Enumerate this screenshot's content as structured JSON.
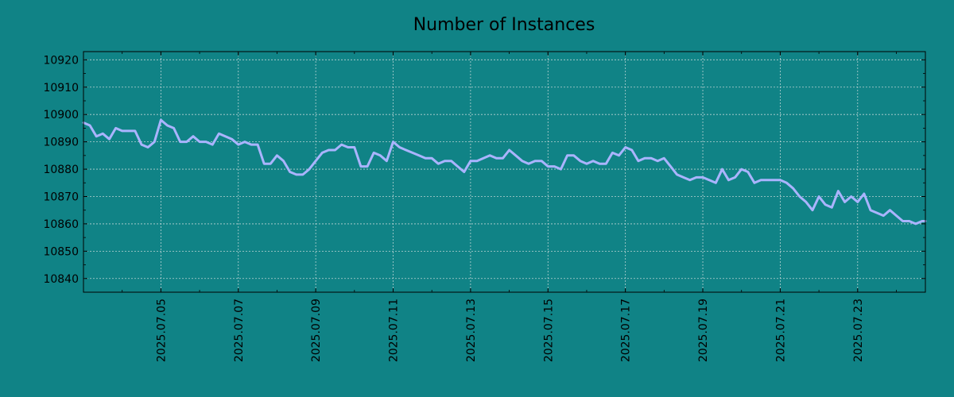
{
  "chart_data": {
    "type": "line",
    "title": "Number of Instances",
    "xlabel": "",
    "ylabel": "",
    "x_format": "YYYY.MM.DD",
    "xlim": [
      "2025-07-03 00:00",
      "2025-07-24 18:00"
    ],
    "ylim": [
      10835,
      10923
    ],
    "y_ticks": [
      10840,
      10850,
      10860,
      10870,
      10880,
      10890,
      10900,
      10910,
      10920
    ],
    "x_ticks": [
      "2025.07.05",
      "2025.07.07",
      "2025.07.09",
      "2025.07.11",
      "2025.07.13",
      "2025.07.15",
      "2025.07.17",
      "2025.07.19",
      "2025.07.21",
      "2025.07.23"
    ],
    "grid": true,
    "series": [
      {
        "name": "",
        "color": "#aab4ff",
        "x": [
          "2025-07-03 00:00",
          "2025-07-03 04:00",
          "2025-07-03 08:00",
          "2025-07-03 12:00",
          "2025-07-03 16:00",
          "2025-07-03 20:00",
          "2025-07-04 00:00",
          "2025-07-04 04:00",
          "2025-07-04 08:00",
          "2025-07-04 12:00",
          "2025-07-04 16:00",
          "2025-07-04 20:00",
          "2025-07-05 00:00",
          "2025-07-05 04:00",
          "2025-07-05 08:00",
          "2025-07-05 12:00",
          "2025-07-05 16:00",
          "2025-07-05 20:00",
          "2025-07-06 00:00",
          "2025-07-06 04:00",
          "2025-07-06 08:00",
          "2025-07-06 12:00",
          "2025-07-06 16:00",
          "2025-07-06 20:00",
          "2025-07-07 00:00",
          "2025-07-07 04:00",
          "2025-07-07 08:00",
          "2025-07-07 12:00",
          "2025-07-07 16:00",
          "2025-07-07 20:00",
          "2025-07-08 00:00",
          "2025-07-08 04:00",
          "2025-07-08 08:00",
          "2025-07-08 12:00",
          "2025-07-08 16:00",
          "2025-07-08 20:00",
          "2025-07-09 00:00",
          "2025-07-09 04:00",
          "2025-07-09 08:00",
          "2025-07-09 12:00",
          "2025-07-09 16:00",
          "2025-07-09 20:00",
          "2025-07-10 00:00",
          "2025-07-10 04:00",
          "2025-07-10 08:00",
          "2025-07-10 12:00",
          "2025-07-10 16:00",
          "2025-07-10 20:00",
          "2025-07-11 00:00",
          "2025-07-11 04:00",
          "2025-07-11 08:00",
          "2025-07-11 12:00",
          "2025-07-11 16:00",
          "2025-07-11 20:00",
          "2025-07-12 00:00",
          "2025-07-12 04:00",
          "2025-07-12 08:00",
          "2025-07-12 12:00",
          "2025-07-12 16:00",
          "2025-07-12 20:00",
          "2025-07-13 00:00",
          "2025-07-13 04:00",
          "2025-07-13 08:00",
          "2025-07-13 12:00",
          "2025-07-13 16:00",
          "2025-07-13 20:00",
          "2025-07-14 00:00",
          "2025-07-14 04:00",
          "2025-07-14 08:00",
          "2025-07-14 12:00",
          "2025-07-14 16:00",
          "2025-07-14 20:00",
          "2025-07-15 00:00",
          "2025-07-15 04:00",
          "2025-07-15 08:00",
          "2025-07-15 12:00",
          "2025-07-15 16:00",
          "2025-07-15 20:00",
          "2025-07-16 00:00",
          "2025-07-16 04:00",
          "2025-07-16 08:00",
          "2025-07-16 12:00",
          "2025-07-16 16:00",
          "2025-07-16 20:00",
          "2025-07-17 00:00",
          "2025-07-17 04:00",
          "2025-07-17 08:00",
          "2025-07-17 12:00",
          "2025-07-17 16:00",
          "2025-07-17 20:00",
          "2025-07-18 00:00",
          "2025-07-18 04:00",
          "2025-07-18 08:00",
          "2025-07-18 12:00",
          "2025-07-18 16:00",
          "2025-07-18 20:00",
          "2025-07-19 00:00",
          "2025-07-19 04:00",
          "2025-07-19 08:00",
          "2025-07-19 12:00",
          "2025-07-19 16:00",
          "2025-07-19 20:00",
          "2025-07-20 00:00",
          "2025-07-20 04:00",
          "2025-07-20 08:00",
          "2025-07-20 12:00",
          "2025-07-20 16:00",
          "2025-07-20 20:00",
          "2025-07-21 00:00",
          "2025-07-21 04:00",
          "2025-07-21 08:00",
          "2025-07-21 12:00",
          "2025-07-21 16:00",
          "2025-07-21 20:00",
          "2025-07-22 00:00",
          "2025-07-22 04:00",
          "2025-07-22 08:00",
          "2025-07-22 12:00",
          "2025-07-22 16:00",
          "2025-07-22 20:00",
          "2025-07-23 00:00",
          "2025-07-23 04:00",
          "2025-07-23 08:00",
          "2025-07-23 12:00",
          "2025-07-23 16:00",
          "2025-07-23 20:00",
          "2025-07-24 00:00",
          "2025-07-24 04:00",
          "2025-07-24 08:00",
          "2025-07-24 12:00",
          "2025-07-24 16:00",
          "2025-07-24 20:00"
        ],
        "values": [
          10897,
          10896,
          10892,
          10893,
          10891,
          10895,
          10894,
          10894,
          10894,
          10889,
          10888,
          10890,
          10898,
          10896,
          10895,
          10890,
          10890,
          10892,
          10890,
          10890,
          10889,
          10893,
          10892,
          10891,
          10889,
          10890,
          10889,
          10889,
          10882,
          10882,
          10885,
          10883,
          10879,
          10878,
          10878,
          10880,
          10883,
          10886,
          10887,
          10887,
          10889,
          10888,
          10888,
          10881,
          10881,
          10886,
          10885,
          10883,
          10890,
          10888,
          10887,
          10886,
          10885,
          10884,
          10884,
          10882,
          10883,
          10883,
          10881,
          10879,
          10883,
          10883,
          10884,
          10885,
          10884,
          10884,
          10887,
          10885,
          10883,
          10882,
          10883,
          10883,
          10881,
          10881,
          10880,
          10885,
          10885,
          10883,
          10882,
          10883,
          10882,
          10882,
          10886,
          10885,
          10888,
          10887,
          10883,
          10884,
          10884,
          10883,
          10884,
          10881,
          10878,
          10877,
          10876,
          10877,
          10877,
          10876,
          10875,
          10880,
          10876,
          10877,
          10880,
          10879,
          10875,
          10876,
          10876,
          10876,
          10876,
          10875,
          10873,
          10870,
          10868,
          10865,
          10870,
          10867,
          10866,
          10872,
          10868,
          10870,
          10868,
          10871,
          10865,
          10864,
          10863,
          10865,
          10863,
          10861,
          10861,
          10860,
          10861,
          10861
        ]
      }
    ],
    "colors": {
      "background": "#108386",
      "line": "#aab4ff",
      "grid": "#b9d3d4",
      "axes": "#000000"
    }
  }
}
